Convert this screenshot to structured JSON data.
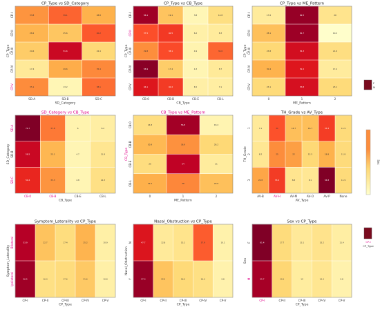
{
  "figure": {
    "background": "#ffffff"
  },
  "chart_data": [
    {
      "type": "heatmap",
      "title": "CP_Type vs SD_Category",
      "xlabel": "SD_Category",
      "ylabel": "CP_Type",
      "x_categories": [
        "SD-A",
        "SD-B",
        "SD-C"
      ],
      "y_categories": [
        "CP-I",
        "CP-II",
        "CP-III",
        "CP-IV",
        "CP-V"
      ],
      "values": [
        [
          33.8,
          39.1,
          28.8
        ],
        [
          28.2,
          25.6,
          40.2
        ],
        [
          24.6,
          51.6,
          22.4
        ],
        [
          17.4,
          29.6,
          35.4
        ],
        [
          35.1,
          13.2,
          38.1
        ]
      ],
      "vmin": 10,
      "vmax": 60
    },
    {
      "type": "heatmap",
      "title": "CP_Type vs CB_Type",
      "xlabel": "CB_Type",
      "ylabel": "CP_Type",
      "x_categories": [
        "CB-0",
        "CB-B",
        "CB-E",
        "CB-L"
      ],
      "y_categories": [
        "CP-I",
        "CP-II",
        "CP-III",
        "CP-IV",
        "CP-V"
      ],
      "values": [
        [
          56.1,
          19.1,
          3.8,
          12.8
        ],
        [
          37.5,
          40.5,
          6.2,
          8.3
        ],
        [
          29.8,
          38.1,
          4.9,
          34.6
        ],
        [
          58.9,
          17.4,
          4.3,
          8.7
        ],
        [
          46.1,
          40.2,
          6.5,
          7.1
        ]
      ],
      "vmin": 0,
      "vmax": 60
    },
    {
      "type": "heatmap",
      "title": "CP_Type vs ME_Pattern",
      "xlabel": "ME_Pattern",
      "ylabel": "CP_Type",
      "x_categories": [
        "0",
        "1",
        "2"
      ],
      "y_categories": [
        "CP-I",
        "CP-II",
        "CP-III",
        "CP-IV",
        "CP-V"
      ],
      "values": [
        [
          17.6,
          62.5,
          20.0
        ],
        [
          28.1,
          61.7,
          10.2
        ],
        [
          23.8,
          54.3,
          21.9
        ],
        [
          30.4,
          52.2,
          17.4
        ],
        [
          23.1,
          53.8,
          23.1
        ]
      ],
      "vmin": 10,
      "vmax": 65
    },
    {
      "type": "heatmap",
      "title": "SD_Category vs CB_Type",
      "xlabel": "CB_Type",
      "ylabel": "SD_Category",
      "x_categories": [
        "CB-0",
        "CB-B",
        "CB-E",
        "CB-L"
      ],
      "y_categories": [
        "SD-A",
        "SD-B",
        "SD-C"
      ],
      "values": [
        [
          74.7,
          37.8,
          6.0,
          8.2
        ],
        [
          58.5,
          25.1,
          4.7,
          11.8
        ],
        [
          50.4,
          33.3,
          4.8,
          14.3
        ]
      ],
      "vmin": 0,
      "vmax": 70
    },
    {
      "type": "heatmap",
      "title": "CB_Type vs ME_Pattern",
      "xlabel": "ME_Pattern",
      "ylabel": "CB_Type",
      "x_categories": [
        "0",
        "1",
        "2"
      ],
      "y_categories": [
        "CB-0",
        "CB-B",
        "CB-E",
        "CB-L"
      ],
      "values": [
        [
          24.8,
          56.8,
          18.4
        ],
        [
          30.9,
          36.9,
          26.2
        ],
        [
          25.0,
          54.0,
          21.0
        ],
        [
          32.2,
          38.0,
          29.8
        ]
      ],
      "vmin": 15,
      "vmax": 60
    },
    {
      "type": "heatmap",
      "title": "TH_Grade vs AV_Type",
      "xlabel": "AV_Type",
      "ylabel": "TH_Grade",
      "x_categories": [
        "AV-B",
        "AV-H",
        "AV-M",
        "AV-O",
        "AV-P",
        "None"
      ],
      "y_categories": [
        "1",
        "2",
        "3"
      ],
      "values": [
        [
          7.1,
          31.0,
          16.7,
          16.7,
          33.3,
          11.9
        ],
        [
          8.2,
          25.0,
          22.0,
          12.5,
          18.8,
          11.8
        ],
        [
          20.8,
          33.4,
          8.8,
          8.1,
          54.8,
          11.9
        ]
      ],
      "vmin": 0,
      "vmax": 50
    },
    {
      "type": "heatmap",
      "title": "Symptom_Laterality vs CP_Type",
      "xlabel": "CP_Type",
      "ylabel": "Symptom_Laterality",
      "x_categories": [
        "CP-I",
        "CP-II",
        "CP-III",
        "CP-IV",
        "CP-V"
      ],
      "y_categories": [
        "Bilateral",
        "Ipsilateral"
      ],
      "values": [
        [
          53.9,
          22.7,
          17.4,
          25.2,
          10.9
        ],
        [
          56.5,
          16.4,
          17.6,
          21.6,
          10.8
        ]
      ],
      "vmin": 5,
      "vmax": 60
    },
    {
      "type": "heatmap",
      "title": "Nasal_Obstruction vs CP_Type",
      "xlabel": "CP_Type",
      "ylabel": "Nasal_Obstruction",
      "x_categories": [
        "CP-I",
        "CP-II",
        "CP-III",
        "CP-IV",
        "CP-V"
      ],
      "y_categories": [
        "N",
        "Y"
      ],
      "values": [
        [
          47.7,
          12.8,
          15.1,
          37.9,
          10.1
        ],
        [
          57.3,
          22.5,
          18.4,
          16.4,
          9.8
        ]
      ],
      "vmin": 5,
      "vmax": 60
    },
    {
      "type": "heatmap",
      "title": "Sex vs CP_Type",
      "xlabel": "CP_Type",
      "ylabel": "Sex",
      "x_categories": [
        "CP-I",
        "CP-II",
        "CP-III",
        "CP-IV",
        "CP-V"
      ],
      "y_categories": [
        "F",
        "M"
      ],
      "values": [
        [
          61.4,
          17.7,
          13.1,
          15.2,
          11.4
        ],
        [
          55.7,
          19.1,
          12.0,
          14.4,
          9.8
        ]
      ],
      "vmin": 5,
      "vmax": 60
    }
  ],
  "overlays": {
    "legend_label": "CP-I",
    "legend_label2": "CP_Type",
    "small_swatch_label": "M",
    "small_swatch_label2": "F",
    "colorbar_label": "Sex"
  },
  "colormap": [
    "#ffffcc",
    "#ffeda0",
    "#fed976",
    "#feb24c",
    "#fd8d3c",
    "#fc4e2a",
    "#e31a1c",
    "#bd0026",
    "#800026"
  ],
  "highlight_color": "#e0008a"
}
